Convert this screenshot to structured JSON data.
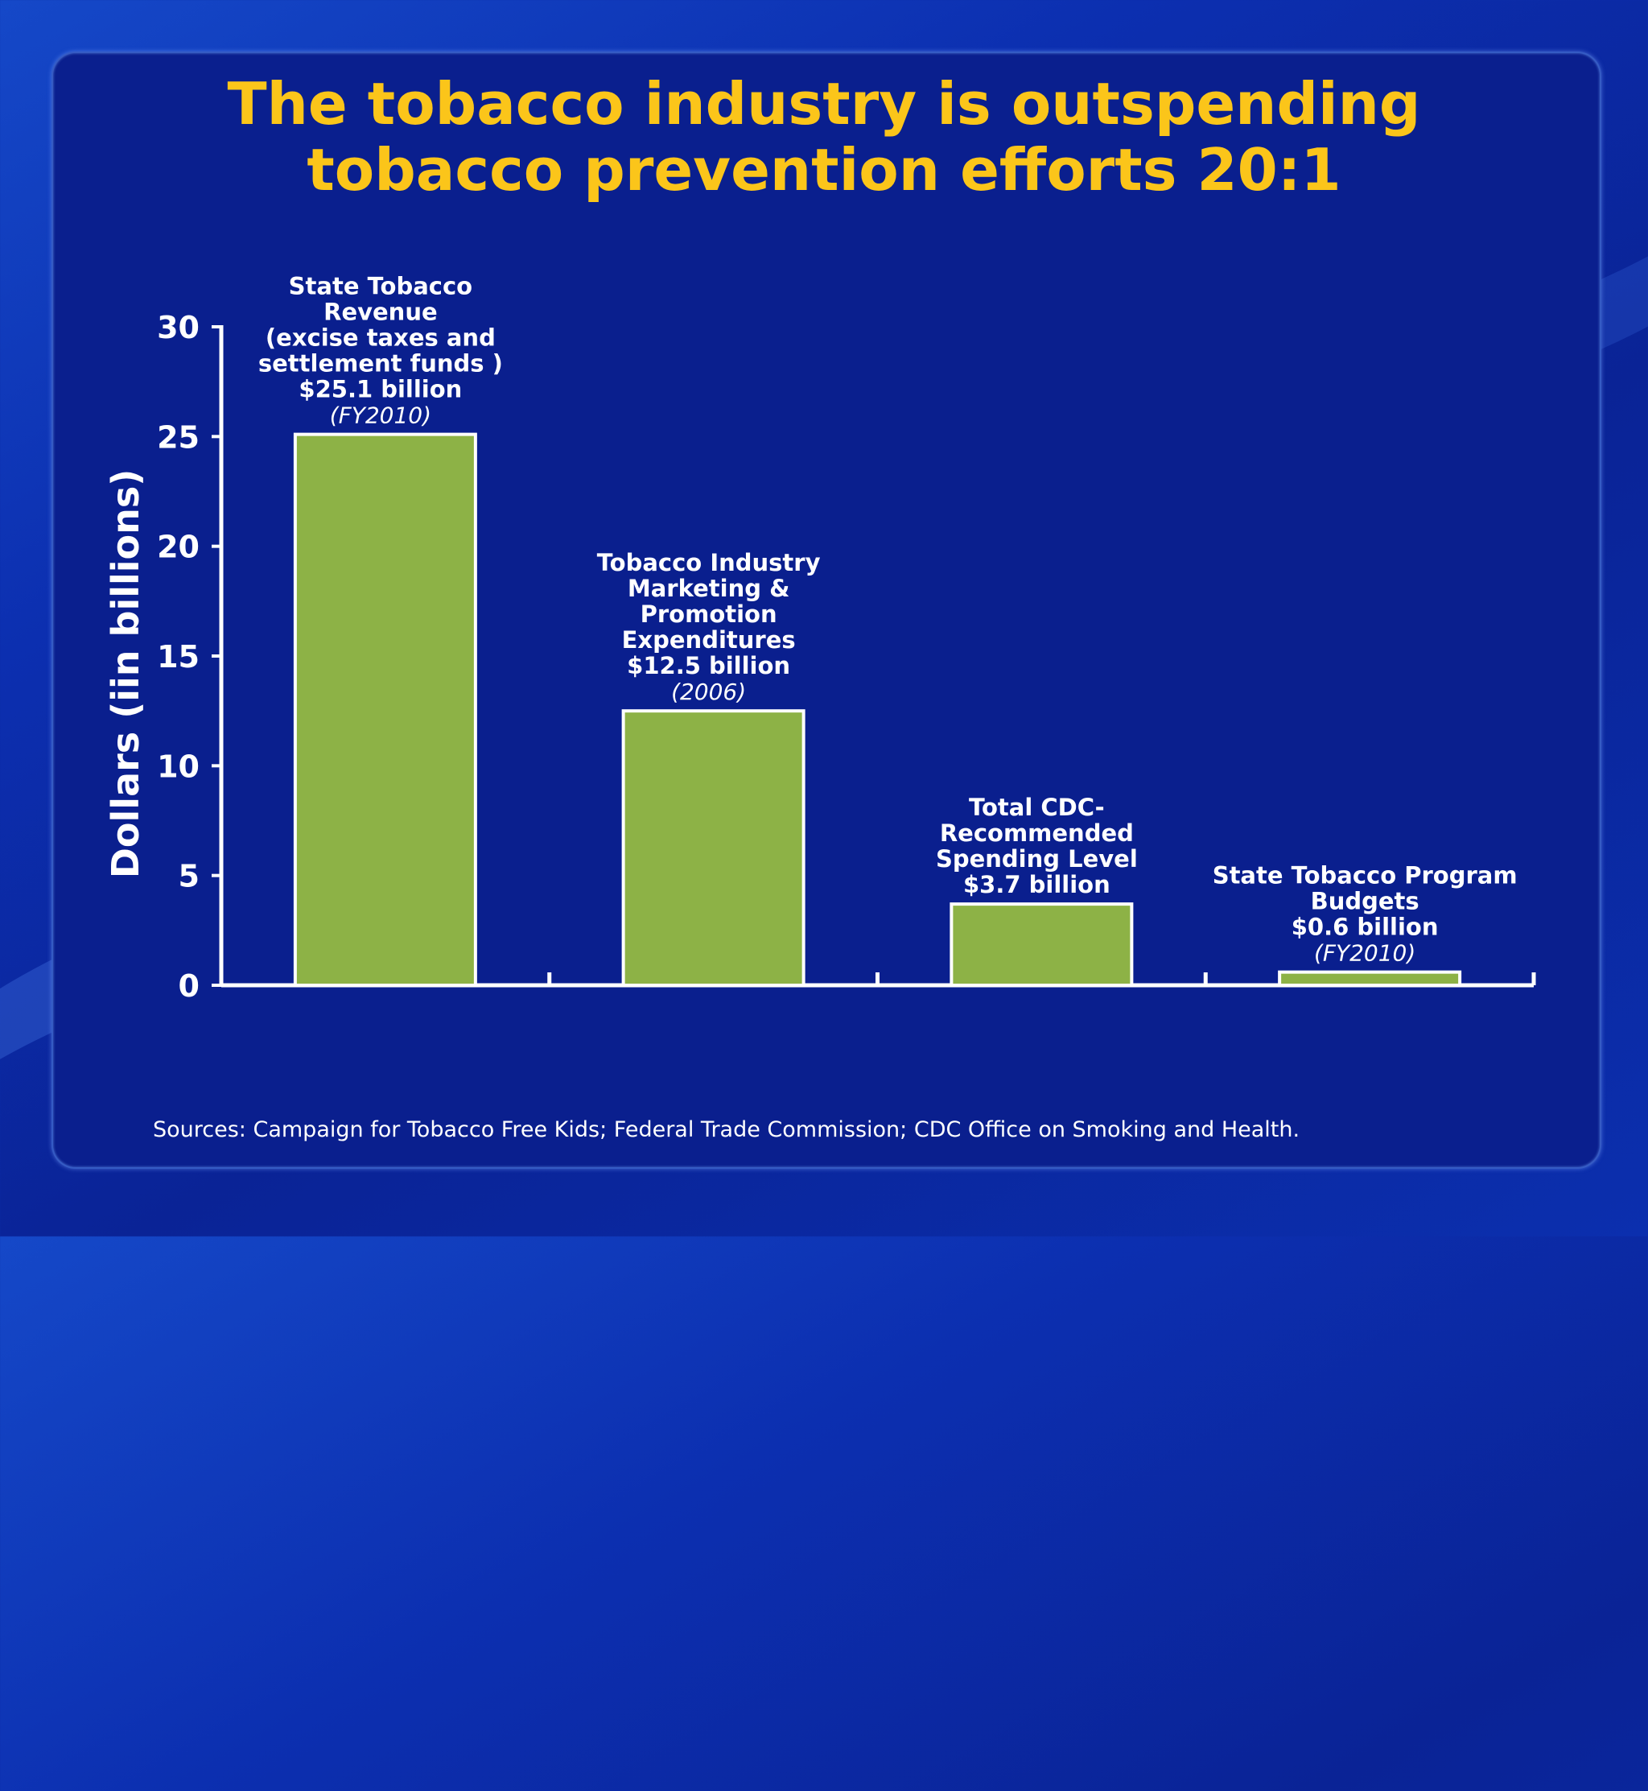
{
  "chart_data": {
    "type": "bar",
    "title": [
      "The tobacco industry is outspending",
      "tobacco prevention efforts 20:1"
    ],
    "ylabel": "Dollars (iin billions)",
    "ylim": [
      0,
      30
    ],
    "yticks": [
      0,
      5,
      10,
      15,
      20,
      25,
      30
    ],
    "bar_color": "#8db246",
    "categories": [
      {
        "label_lines": [
          "State Tobacco",
          "Revenue",
          "(excise taxes and",
          "settlement funds )",
          "$25.1 billion"
        ],
        "note": "(FY2010)"
      },
      {
        "label_lines": [
          "Tobacco Industry",
          "Marketing &",
          "Promotion",
          "Expenditures",
          "$12.5 billion"
        ],
        "note": "(2006)"
      },
      {
        "label_lines": [
          "Total CDC-",
          "Recommended",
          "Spending Level",
          "$3.7 billion"
        ],
        "note": ""
      },
      {
        "label_lines": [
          "State Tobacco Program",
          "Budgets",
          "$0.6 billion"
        ],
        "note": "(FY2010)"
      }
    ],
    "values": [
      25.1,
      12.5,
      3.7,
      0.6
    ],
    "source": "Sources: Campaign for Tobacco Free Kids; Federal Trade Commission; CDC Office on Smoking and Health."
  },
  "colors": {
    "title": "#fbc51a",
    "text": "#ffffff",
    "panel": "#0a1f8e"
  }
}
